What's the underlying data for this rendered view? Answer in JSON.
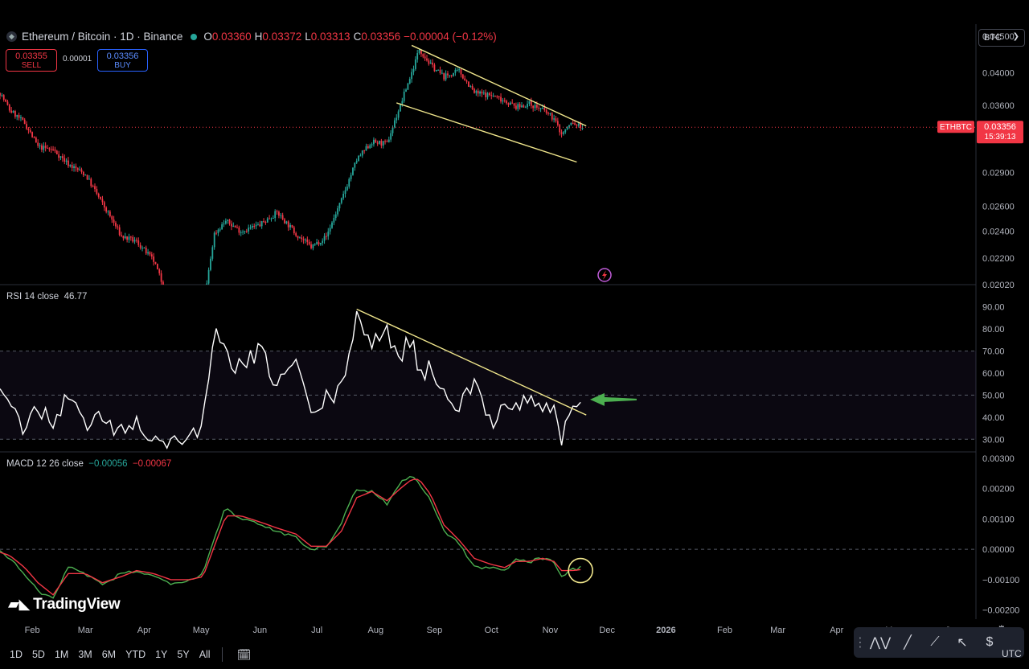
{
  "header": {
    "symbol": "Ethereum / Bitcoin · 1D · Binance",
    "o_label": "O",
    "o_value": "0.03360",
    "h_label": "H",
    "h_value": "0.03372",
    "l_label": "L",
    "l_value": "0.03313",
    "c_label": "C",
    "c_value": "0.03356",
    "change": "−0.00004 (−0.12%)"
  },
  "trade": {
    "sell_price": "0.03355",
    "sell_label": "SELL",
    "spread": "0.00001",
    "buy_price": "0.03356",
    "buy_label": "BUY"
  },
  "currency_button": "BTC",
  "price_tag": {
    "symbol": "ETHBTC",
    "price": "0.03356",
    "countdown": "15:39:13"
  },
  "rsi_legend": {
    "label": "RSI 14 close",
    "value": "46.77"
  },
  "macd_legend": {
    "label": "MACD 12 26 close",
    "macd": "−0.00056",
    "signal": "−0.00067"
  },
  "brand": "TradingView",
  "timeframes": [
    "1D",
    "5D",
    "1M",
    "3M",
    "6M",
    "YTD",
    "1Y",
    "5Y",
    "All"
  ],
  "timezone": "UTC",
  "colors": {
    "up": "#26a69a",
    "down": "#f23645",
    "rsi": "#ffffff",
    "trend": "#f0e68c",
    "macd": "#4caf50",
    "signal": "#f23645",
    "arrow": "#4caf50"
  },
  "chart_data": [
    {
      "type": "candlestick",
      "title": "Ethereum / Bitcoin · 1D · Binance",
      "x_ticks": [
        "Feb",
        "Mar",
        "Apr",
        "May",
        "Jun",
        "Jul",
        "Aug",
        "Sep",
        "Oct",
        "Nov",
        "Dec",
        "2026",
        "Feb",
        "Mar",
        "Apr",
        "May",
        "Jun"
      ],
      "y_ticks": [
        "0.04500",
        "0.04000",
        "0.03600",
        "0.02900",
        "0.02600",
        "0.02400",
        "0.02200",
        "0.02020"
      ],
      "scale": "log",
      "ylim": [
        0.0202,
        0.0468
      ],
      "close_path_dates": [
        "2025-01-15",
        "2025-01-20",
        "2025-01-28",
        "2025-02-04",
        "2025-02-12",
        "2025-02-20",
        "2025-03-01",
        "2025-03-10",
        "2025-03-20",
        "2025-03-28",
        "2025-04-06",
        "2025-04-15",
        "2025-04-25",
        "2025-05-02",
        "2025-05-08",
        "2025-05-14",
        "2025-05-22",
        "2025-06-01",
        "2025-06-10",
        "2025-06-20",
        "2025-06-28",
        "2025-07-06",
        "2025-07-14",
        "2025-07-22",
        "2025-07-30",
        "2025-08-07",
        "2025-08-14",
        "2025-08-20",
        "2025-08-24",
        "2025-08-30",
        "2025-09-06",
        "2025-09-14",
        "2025-09-22",
        "2025-10-01",
        "2025-10-08",
        "2025-10-14",
        "2025-10-21",
        "2025-10-28",
        "2025-11-03",
        "2025-11-07",
        "2025-11-12",
        "2025-11-18"
      ],
      "close_path": [
        0.0375,
        0.0355,
        0.034,
        0.0315,
        0.0312,
        0.0298,
        0.0288,
        0.0262,
        0.0236,
        0.0232,
        0.0218,
        0.0188,
        0.0185,
        0.0184,
        0.0238,
        0.0248,
        0.024,
        0.0245,
        0.0255,
        0.0238,
        0.0228,
        0.0236,
        0.0265,
        0.0302,
        0.032,
        0.0318,
        0.036,
        0.04,
        0.0432,
        0.041,
        0.0395,
        0.0402,
        0.0375,
        0.0372,
        0.0366,
        0.0358,
        0.0362,
        0.0355,
        0.0345,
        0.0328,
        0.034,
        0.0336
      ],
      "last_price": 0.03356,
      "channel": {
        "upper": {
          "from": [
            "2025-08-20",
            0.0437
          ],
          "to": [
            "2025-11-20",
            0.0337
          ]
        },
        "lower": {
          "from": [
            "2025-08-12",
            0.0363
          ],
          "to": [
            "2025-11-15",
            0.03
          ]
        }
      }
    },
    {
      "type": "line",
      "title": "RSI 14 close",
      "y_ticks": [
        90,
        80,
        70,
        60,
        50,
        40,
        30
      ],
      "ylim": [
        25,
        95
      ],
      "band": [
        30,
        70
      ],
      "x": [
        "2025-01-15",
        "2025-01-20",
        "2025-01-28",
        "2025-02-04",
        "2025-02-12",
        "2025-02-20",
        "2025-03-01",
        "2025-03-10",
        "2025-03-20",
        "2025-03-28",
        "2025-04-06",
        "2025-04-15",
        "2025-04-25",
        "2025-05-02",
        "2025-05-08",
        "2025-05-14",
        "2025-05-22",
        "2025-06-01",
        "2025-06-10",
        "2025-06-20",
        "2025-06-28",
        "2025-07-06",
        "2025-07-14",
        "2025-07-22",
        "2025-07-30",
        "2025-08-07",
        "2025-08-14",
        "2025-08-20",
        "2025-08-24",
        "2025-08-30",
        "2025-09-06",
        "2025-09-14",
        "2025-09-22",
        "2025-10-01",
        "2025-10-08",
        "2025-10-14",
        "2025-10-21",
        "2025-10-28",
        "2025-11-03",
        "2025-11-07",
        "2025-11-12",
        "2025-11-18"
      ],
      "values": [
        55,
        42,
        35,
        45,
        38,
        50,
        36,
        40,
        33,
        38,
        30,
        28,
        32,
        36,
        78,
        68,
        62,
        70,
        55,
        66,
        40,
        48,
        52,
        88,
        72,
        78,
        68,
        77,
        60,
        62,
        52,
        46,
        54,
        38,
        48,
        44,
        50,
        42,
        46,
        30,
        42,
        46.77
      ],
      "trendline": {
        "from": [
          "2025-07-22",
          89
        ],
        "to": [
          "2025-11-20",
          41
        ]
      },
      "annotation": {
        "type": "arrow",
        "at": [
          "2025-11-22",
          48
        ]
      }
    },
    {
      "type": "line",
      "title": "MACD 12 26 close",
      "y_ticks": [
        "0.00300",
        "0.00200",
        "0.00100",
        "0.00000",
        "−0.00100",
        "−0.00200"
      ],
      "ylim": [
        -0.0023,
        0.0031
      ],
      "x": [
        "2025-01-15",
        "2025-01-20",
        "2025-01-28",
        "2025-02-04",
        "2025-02-12",
        "2025-02-20",
        "2025-03-01",
        "2025-03-10",
        "2025-03-20",
        "2025-03-28",
        "2025-04-06",
        "2025-04-15",
        "2025-04-25",
        "2025-05-02",
        "2025-05-08",
        "2025-05-14",
        "2025-05-22",
        "2025-06-01",
        "2025-06-10",
        "2025-06-20",
        "2025-06-28",
        "2025-07-06",
        "2025-07-14",
        "2025-07-22",
        "2025-07-30",
        "2025-08-07",
        "2025-08-14",
        "2025-08-20",
        "2025-08-24",
        "2025-08-30",
        "2025-09-06",
        "2025-09-14",
        "2025-09-22",
        "2025-10-01",
        "2025-10-08",
        "2025-10-14",
        "2025-10-21",
        "2025-10-28",
        "2025-11-03",
        "2025-11-07",
        "2025-11-12",
        "2025-11-18"
      ],
      "series": [
        {
          "name": "−0.00056",
          "values": [
            -0.0001,
            -0.0003,
            -0.0008,
            -0.0014,
            -0.0016,
            -0.0006,
            -0.0008,
            -0.0012,
            -0.0008,
            -0.0007,
            -0.0009,
            -0.0011,
            -0.001,
            -0.0008,
            0.0004,
            0.0014,
            0.001,
            0.0008,
            0.0006,
            0.0004,
            0.0,
            0.0001,
            0.0009,
            0.002,
            0.0019,
            0.0015,
            0.0022,
            0.0024,
            0.0022,
            0.0016,
            0.0006,
            0.0002,
            -0.0006,
            -0.0006,
            -0.0007,
            -0.0003,
            -0.0004,
            -0.0003,
            -0.0004,
            -0.0009,
            -0.0007,
            -0.00056
          ]
        },
        {
          "name": "−0.00067",
          "values": [
            -0.0001,
            -0.0002,
            -0.0006,
            -0.0011,
            -0.0015,
            -0.0008,
            -0.0008,
            -0.0011,
            -0.0009,
            -0.0007,
            -0.0008,
            -0.001,
            -0.001,
            -0.0009,
            0.0001,
            0.0011,
            0.0011,
            0.0009,
            0.0007,
            0.0005,
            0.0001,
            0.0001,
            0.0006,
            0.0017,
            0.0019,
            0.0016,
            0.002,
            0.0023,
            0.0023,
            0.0018,
            0.0008,
            0.0003,
            -0.0003,
            -0.0005,
            -0.0006,
            -0.0004,
            -0.0004,
            -0.0003,
            -0.0004,
            -0.0007,
            -0.0007,
            -0.00067
          ]
        }
      ],
      "zero_line": 0,
      "annotation": {
        "type": "circle",
        "at": [
          "2025-11-17",
          -0.0007
        ]
      }
    }
  ]
}
